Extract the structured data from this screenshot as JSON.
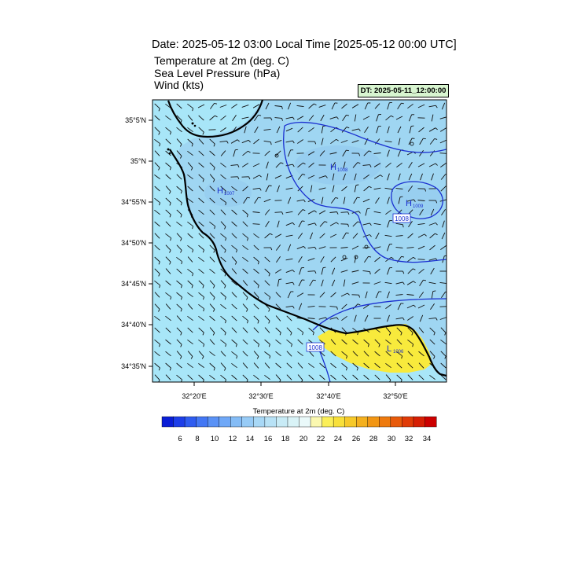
{
  "header": {
    "title": "Date: 2025-05-12  03:00 Local Time [2025-05-12  00:00 UTC]",
    "fields": [
      "Temperature at 2m   (deg. C)",
      "Sea Level Pressure   (hPa)",
      "Wind   (kts)"
    ],
    "dt_label": "DT: 2025-05-11_12:00:00"
  },
  "map": {
    "lat_labels": [
      "35°5'N",
      "35°N",
      "34°55'N",
      "34°50'N",
      "34°45'N",
      "34°40'N",
      "34°35'N"
    ],
    "lon_labels": [
      "32°20'E",
      "32°30'E",
      "32°40'E",
      "32°50'E"
    ],
    "pressure_centers": [
      {
        "type": "H",
        "value": "1007"
      },
      {
        "type": "H",
        "value": "1008"
      },
      {
        "type": "H",
        "value": "1009"
      },
      {
        "type": "L",
        "value": "1006"
      }
    ],
    "contour_labels": [
      "1008",
      "1006"
    ],
    "colors": {
      "sea": "#a8e6f8",
      "land_cool": "#9fd6f2",
      "land_warm": "#f8ea3c",
      "contour": "#1a2fd0",
      "coast": "#000000"
    }
  },
  "colorbar": {
    "title": "Temperature at 2m  (deg. C)",
    "tick_labels": [
      "6",
      "8",
      "10",
      "12",
      "14",
      "16",
      "18",
      "20",
      "22",
      "24",
      "26",
      "28",
      "30",
      "32",
      "34"
    ],
    "colors": [
      "#0a1ed6",
      "#1d3ee8",
      "#2f5cf0",
      "#4377f4",
      "#5a92f6",
      "#6fa8f7",
      "#84bcf6",
      "#97cbf6",
      "#a8d8f6",
      "#b8e2f6",
      "#c8ebf6",
      "#d9f3f7",
      "#eaf9fa",
      "#fbf8b0",
      "#fbef58",
      "#f8e03a",
      "#f6c929",
      "#f4b01e",
      "#f29614",
      "#ee7a0e",
      "#e85a0a",
      "#e03b07",
      "#d61f04",
      "#cc0000"
    ]
  }
}
